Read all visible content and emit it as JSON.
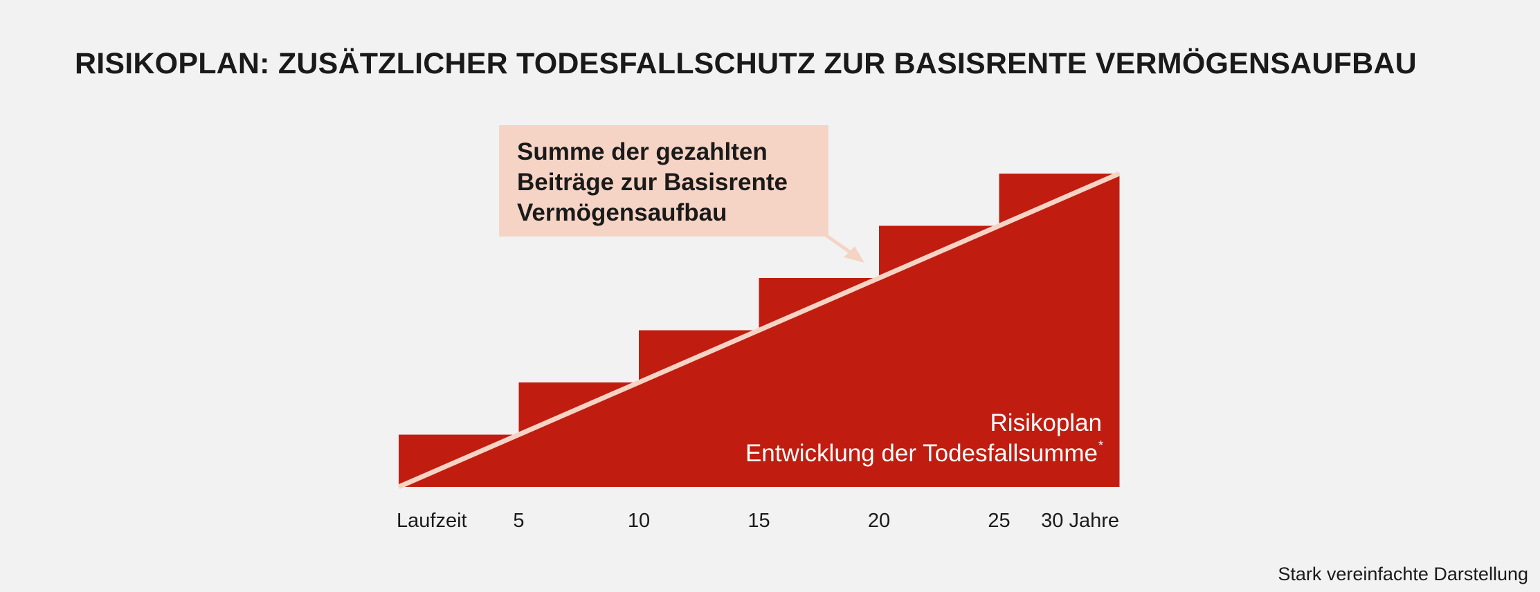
{
  "title": "RISIKOPLAN: ZUSÄTZLICHER TODESFALLSCHUTZ ZUR BASISRENTE VERMÖGENSAUFBAU",
  "footnote": "Stark vereinfachte Darstellung",
  "colors": {
    "background": "#f2f2f2",
    "risk_plan": "#c01d10",
    "contributions_line": "#f6d4c5",
    "callout_bg": "#f6d4c5",
    "text": "#1a1a1a",
    "text_on_red": "#ffffff"
  },
  "chart_data": {
    "type": "area",
    "x_axis_label": "Laufzeit",
    "x_ticks": [
      "5",
      "10",
      "15",
      "20",
      "25",
      "30 Jahre"
    ],
    "xlim": [
      0,
      30
    ],
    "series": [
      {
        "name": "Risikoplan Entwicklung der Todesfallsumme*",
        "label_lines": [
          "Risikoplan",
          "Entwicklung der Todesfallsumme"
        ],
        "label_sup": "*",
        "style": "step",
        "values": [
          {
            "x_start": 0,
            "x_end": 5,
            "y": 1
          },
          {
            "x_start": 5,
            "x_end": 10,
            "y": 2
          },
          {
            "x_start": 10,
            "x_end": 15,
            "y": 3
          },
          {
            "x_start": 15,
            "x_end": 20,
            "y": 4
          },
          {
            "x_start": 20,
            "x_end": 25,
            "y": 5
          },
          {
            "x_start": 25,
            "x_end": 30,
            "y": 6
          }
        ]
      },
      {
        "name": "Summe der gezahlten Beiträge zur Basisrente Vermögensaufbau",
        "label_lines": [
          "Summe der gezahlten",
          "Beiträge zur Basisrente",
          "Vermögensaufbau"
        ],
        "style": "line",
        "points": [
          [
            0,
            0
          ],
          [
            30,
            6
          ]
        ]
      }
    ],
    "ylim": [
      0,
      6
    ],
    "y_axis_shown": false,
    "grid": false
  }
}
